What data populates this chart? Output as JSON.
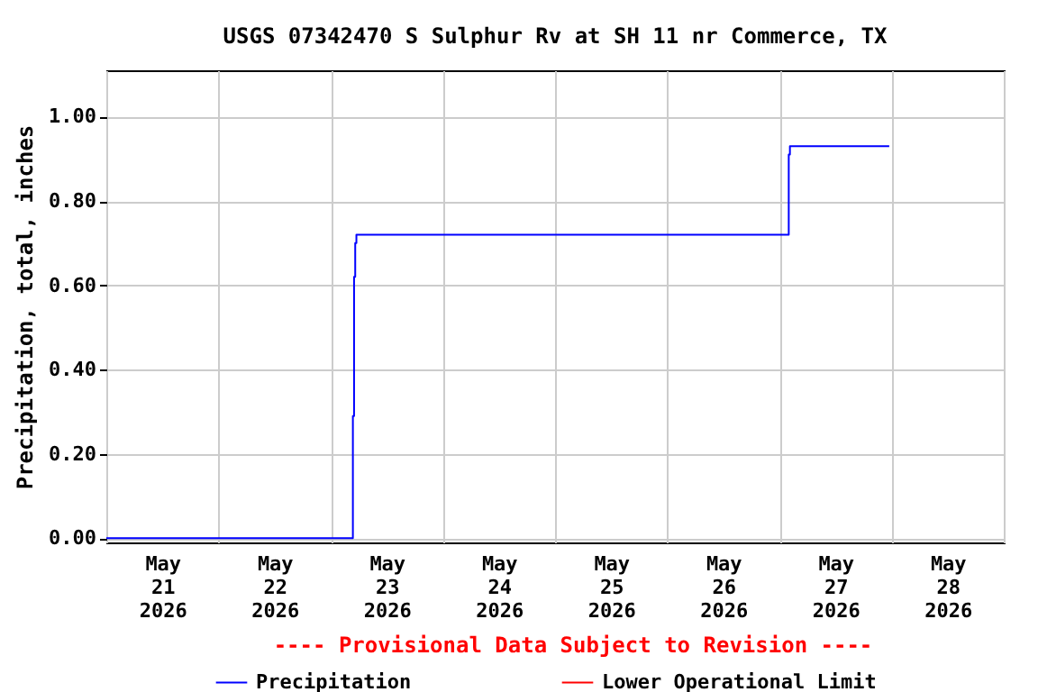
{
  "chart_data": {
    "type": "step",
    "title": "USGS 07342470 S Sulphur Rv at SH 11 nr Commerce, TX",
    "ylabel": "Precipitation, total, inches",
    "x": [
      "2026-05-21T00:00",
      "2026-05-23T04:45",
      "2026-05-23T05:00",
      "2026-05-23T05:15",
      "2026-05-23T05:30",
      "2026-05-27T02:00",
      "2026-05-27T02:15",
      "2026-05-27T23:30"
    ],
    "series": [
      {
        "name": "Precipitation",
        "color": "#0000ff",
        "values": [
          0,
          0.29,
          0.62,
          0.7,
          0.72,
          0.91,
          0.93,
          0.93
        ]
      },
      {
        "name": "Lower Operational Limit",
        "color": "#ff0000",
        "values": [
          null,
          null,
          null,
          null,
          null,
          null,
          null,
          null
        ]
      }
    ],
    "xlim": [
      "2026-05-21T00:00",
      "2026-05-29T00:00"
    ],
    "xticks": [
      {
        "value": "2026-05-21T00:00",
        "label": null
      },
      {
        "value": "2026-05-21T12:00",
        "label": "May 21 2026"
      },
      {
        "value": "2026-05-22T00:00",
        "label": null
      },
      {
        "value": "2026-05-22T12:00",
        "label": "May 22 2026"
      },
      {
        "value": "2026-05-23T00:00",
        "label": null
      },
      {
        "value": "2026-05-23T12:00",
        "label": "May 23 2026"
      },
      {
        "value": "2026-05-24T00:00",
        "label": null
      },
      {
        "value": "2026-05-24T12:00",
        "label": "May 24 2026"
      },
      {
        "value": "2026-05-25T00:00",
        "label": null
      },
      {
        "value": "2026-05-25T12:00",
        "label": "May 25 2026"
      },
      {
        "value": "2026-05-26T00:00",
        "label": null
      },
      {
        "value": "2026-05-26T12:00",
        "label": "May 26 2026"
      },
      {
        "value": "2026-05-27T00:00",
        "label": null
      },
      {
        "value": "2026-05-27T12:00",
        "label": "May 27 2026"
      },
      {
        "value": "2026-05-28T00:00",
        "label": null
      },
      {
        "value": "2026-05-28T12:00",
        "label": "May 28 2026"
      },
      {
        "value": "2026-05-29T00:00",
        "label": null
      }
    ],
    "ylim": [
      -0.01,
      1.11
    ],
    "yticks": [
      {
        "value": 0,
        "label": "0.00"
      },
      {
        "value": 0.2,
        "label": "0.20"
      },
      {
        "value": 0.4,
        "label": "0.40"
      },
      {
        "value": 0.6,
        "label": "0.60"
      },
      {
        "value": 0.8,
        "label": "0.80"
      },
      {
        "value": 1.0,
        "label": "1.00"
      }
    ],
    "grid": true,
    "legend": "bottom",
    "annotations": [
      "---- Provisional Data Subject to Revision ----"
    ]
  }
}
